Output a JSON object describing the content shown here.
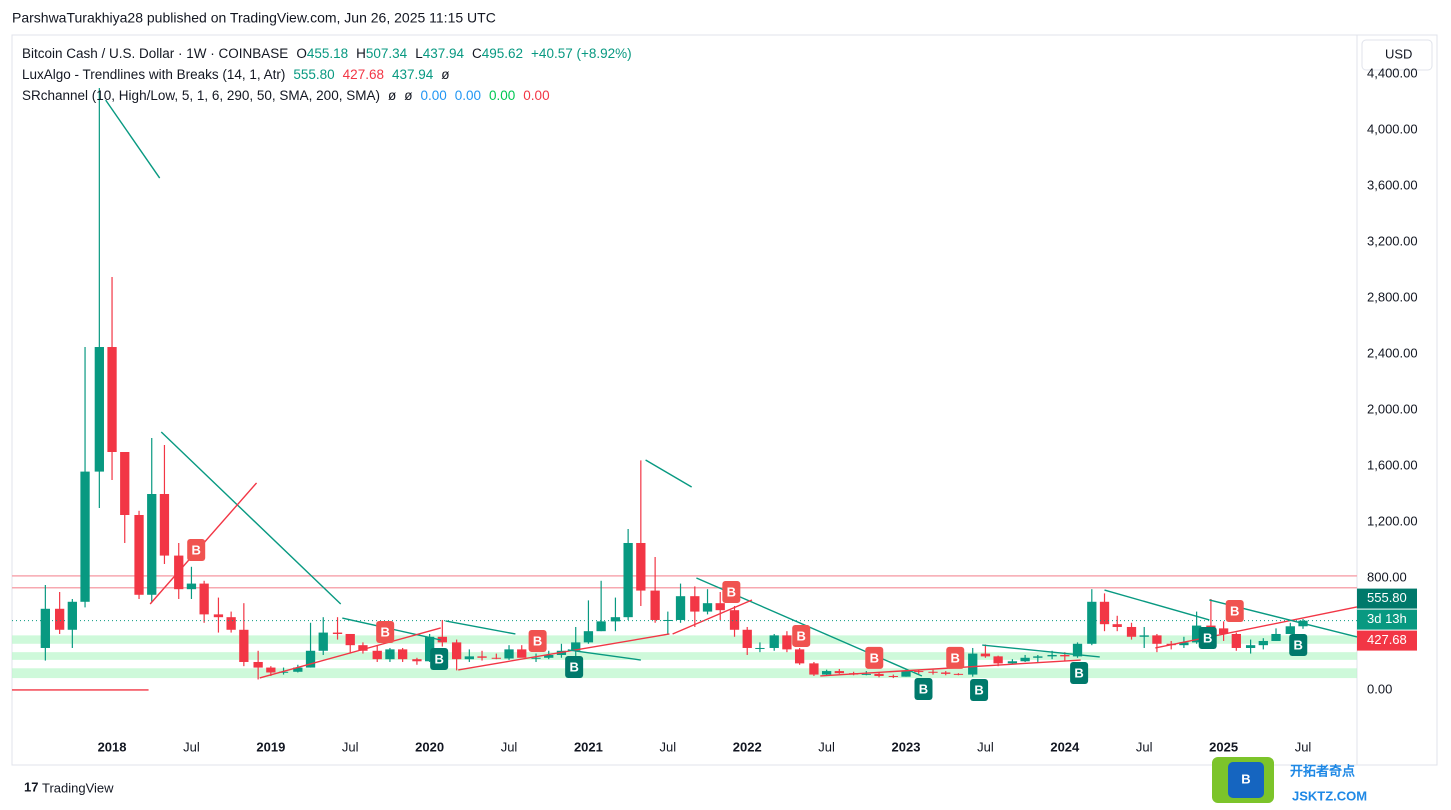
{
  "header": {
    "text": "ParshwaTurakhiya28 published on TradingView.com, Jun 26, 2025 11:15 UTC"
  },
  "legend": {
    "symbol": "Bitcoin Cash / U.S. Dollar · 1W · COINBASE",
    "ohlc": [
      "O",
      "455.18",
      "H",
      "507.34",
      "L",
      "437.94",
      "C",
      "495.62",
      "+40.57 (+8.92%)"
    ],
    "lux": [
      "LuxAlgo - Trendlines with Breaks (14, 1, Atr)",
      "555.80",
      "427.68",
      "437.94",
      "ø"
    ],
    "sr": [
      "SRchannel (10, High/Low, 5, 1, 6, 290, 50, SMA, 200, SMA)",
      "ø",
      "ø",
      "0.00",
      "0.00",
      "0.00",
      "0.00"
    ]
  },
  "currency": "USD",
  "price_boxes": [
    "555.80",
    "3d 13h",
    "427.68"
  ],
  "footer": {
    "brand": "TradingView",
    "watermark": "开拓者奇点",
    "watermark_sub": "JSKTZ.COM",
    "logo": "B"
  },
  "chart_data": {
    "type": "candlestick",
    "up_color": "#089981",
    "down_color": "#f23645",
    "xlim": [
      2017.37,
      2025.84
    ],
    "ylim": [
      -536,
      4679
    ],
    "grid": false,
    "xticks": [
      {
        "value": 2018,
        "label": "2018"
      },
      {
        "value": 2018.5,
        "label": "Jul"
      },
      {
        "value": 2019,
        "label": "2019"
      },
      {
        "value": 2019.5,
        "label": "Jul"
      },
      {
        "value": 2020,
        "label": "2020"
      },
      {
        "value": 2020.5,
        "label": "Jul"
      },
      {
        "value": 2021,
        "label": "2021"
      },
      {
        "value": 2021.5,
        "label": "Jul"
      },
      {
        "value": 2022,
        "label": "2022"
      },
      {
        "value": 2022.5,
        "label": "Jul"
      },
      {
        "value": 2023,
        "label": "2023"
      },
      {
        "value": 2023.5,
        "label": "Jul"
      },
      {
        "value": 2024,
        "label": "2024"
      },
      {
        "value": 2024.5,
        "label": "Jul"
      },
      {
        "value": 2025,
        "label": "2025"
      },
      {
        "value": 2025.5,
        "label": "Jul"
      }
    ],
    "yticks": [
      {
        "value": 0,
        "label": "0.00"
      },
      {
        "value": 800,
        "label": "800.00"
      },
      {
        "value": 1200,
        "label": "1,200.00"
      },
      {
        "value": 1600,
        "label": "1,600.00"
      },
      {
        "value": 2000,
        "label": "2,000.00"
      },
      {
        "value": 2400,
        "label": "2,400.00"
      },
      {
        "value": 2800,
        "label": "2,800.00"
      },
      {
        "value": 3200,
        "label": "3,200.00"
      },
      {
        "value": 3600,
        "label": "3,600.00"
      },
      {
        "value": 4000,
        "label": "4,000.00"
      },
      {
        "value": 4400,
        "label": "4,400.00"
      }
    ],
    "x": [
      2017.58,
      2017.67,
      2017.75,
      2017.83,
      2017.92,
      2018.0,
      2018.08,
      2018.17,
      2018.25,
      2018.33,
      2018.42,
      2018.5,
      2018.58,
      2018.67,
      2018.75,
      2018.83,
      2018.92,
      2019.0,
      2019.08,
      2019.17,
      2019.25,
      2019.33,
      2019.42,
      2019.5,
      2019.58,
      2019.67,
      2019.75,
      2019.83,
      2019.92,
      2020.0,
      2020.08,
      2020.17,
      2020.25,
      2020.33,
      2020.42,
      2020.5,
      2020.58,
      2020.67,
      2020.75,
      2020.83,
      2020.92,
      2021.0,
      2021.08,
      2021.17,
      2021.25,
      2021.33,
      2021.42,
      2021.5,
      2021.58,
      2021.67,
      2021.75,
      2021.83,
      2021.92,
      2022.0,
      2022.08,
      2022.17,
      2022.25,
      2022.33,
      2022.42,
      2022.5,
      2022.58,
      2022.67,
      2022.75,
      2022.83,
      2022.92,
      2023.0,
      2023.08,
      2023.17,
      2023.25,
      2023.33,
      2023.42,
      2023.5,
      2023.58,
      2023.67,
      2023.75,
      2023.83,
      2023.92,
      2024.0,
      2024.08,
      2024.17,
      2024.25,
      2024.33,
      2024.42,
      2024.5,
      2024.58,
      2024.67,
      2024.75,
      2024.83,
      2024.92,
      2025.0,
      2025.08,
      2025.17,
      2025.25,
      2025.33,
      2025.42,
      2025.5
    ],
    "open": [
      300,
      580,
      430,
      630,
      1560,
      2450,
      1700,
      1250,
      680,
      1400,
      960,
      720,
      760,
      540,
      520,
      430,
      200,
      160,
      125,
      130,
      160,
      280,
      410,
      400,
      320,
      280,
      220,
      290,
      220,
      205,
      380,
      340,
      220,
      240,
      230,
      225,
      290,
      230,
      230,
      250,
      280,
      340,
      420,
      490,
      520,
      1050,
      710,
      500,
      500,
      670,
      560,
      620,
      570,
      430,
      300,
      300,
      390,
      290,
      190,
      110,
      135,
      120,
      110,
      115,
      100,
      95,
      135,
      130,
      125,
      115,
      110,
      260,
      240,
      190,
      205,
      230,
      240,
      250,
      240,
      330,
      630,
      470,
      450,
      380,
      390,
      330,
      320,
      340,
      460,
      440,
      400,
      300,
      320,
      350,
      400,
      455
    ],
    "high": [
      750,
      700,
      650,
      2450,
      4300,
      2950,
      1700,
      1280,
      1800,
      1750,
      1050,
      880,
      780,
      660,
      560,
      620,
      280,
      170,
      160,
      180,
      480,
      520,
      520,
      400,
      340,
      320,
      300,
      300,
      230,
      400,
      500,
      360,
      290,
      280,
      260,
      320,
      320,
      260,
      280,
      330,
      450,
      640,
      780,
      660,
      1150,
      1640,
      950,
      560,
      760,
      740,
      720,
      700,
      600,
      450,
      340,
      400,
      420,
      300,
      200,
      145,
      150,
      130,
      135,
      125,
      110,
      150,
      145,
      145,
      135,
      120,
      300,
      325,
      245,
      220,
      250,
      250,
      280,
      270,
      340,
      720,
      690,
      530,
      480,
      450,
      400,
      350,
      380,
      560,
      650,
      490,
      410,
      360,
      370,
      440,
      480,
      507
    ],
    "low": [
      210,
      400,
      300,
      590,
      1300,
      1500,
      1050,
      650,
      630,
      900,
      650,
      650,
      480,
      410,
      410,
      170,
      75,
      100,
      110,
      125,
      160,
      250,
      360,
      260,
      260,
      200,
      200,
      200,
      180,
      200,
      310,
      140,
      200,
      210,
      220,
      215,
      250,
      200,
      220,
      230,
      230,
      330,
      420,
      420,
      500,
      600,
      480,
      400,
      480,
      450,
      540,
      500,
      380,
      250,
      270,
      280,
      270,
      180,
      100,
      100,
      115,
      105,
      105,
      90,
      85,
      95,
      115,
      110,
      105,
      105,
      95,
      230,
      170,
      185,
      200,
      200,
      220,
      210,
      230,
      320,
      420,
      420,
      360,
      300,
      270,
      290,
      300,
      330,
      400,
      350,
      280,
      260,
      290,
      350,
      400,
      437
    ],
    "close": [
      580,
      430,
      630,
      1560,
      2450,
      1700,
      1250,
      680,
      1400,
      960,
      720,
      760,
      540,
      520,
      430,
      200,
      160,
      125,
      130,
      160,
      280,
      410,
      400,
      320,
      280,
      220,
      290,
      220,
      205,
      380,
      340,
      220,
      240,
      230,
      225,
      290,
      230,
      230,
      250,
      280,
      340,
      420,
      490,
      520,
      1050,
      710,
      500,
      500,
      670,
      560,
      620,
      570,
      430,
      300,
      300,
      390,
      290,
      190,
      110,
      135,
      120,
      110,
      115,
      100,
      95,
      135,
      130,
      125,
      115,
      110,
      260,
      240,
      190,
      205,
      230,
      240,
      250,
      240,
      330,
      630,
      470,
      450,
      380,
      390,
      330,
      320,
      340,
      460,
      440,
      400,
      300,
      320,
      350,
      400,
      455,
      495
    ],
    "current_price": 495.62,
    "support_zones": [
      [
        330,
        390
      ],
      [
        215,
        270
      ],
      [
        85,
        155
      ]
    ],
    "resistance_lines": [
      815,
      730
    ],
    "trendlines": [
      {
        "color": "#089981",
        "points": [
          2017.96,
          4214,
          2018.3,
          3657
        ]
      },
      {
        "color": "#089981",
        "points": [
          2018.31,
          1843,
          2019.44,
          614
        ]
      },
      {
        "color": "#f23645",
        "points": [
          2018.24,
          614,
          2018.91,
          1479
        ]
      },
      {
        "color": "#089981",
        "points": [
          2019.45,
          514,
          2020.07,
          357
        ]
      },
      {
        "color": "#f23645",
        "points": [
          2018.93,
          86,
          2020.07,
          443
        ]
      },
      {
        "color": "#089981",
        "points": [
          2020.1,
          493,
          2020.54,
          400
        ]
      },
      {
        "color": "#f23645",
        "points": [
          2020.18,
          143,
          2021.51,
          400
        ]
      },
      {
        "color": "#089981",
        "points": [
          2020.87,
          286,
          2021.33,
          214
        ]
      },
      {
        "color": "#089981",
        "points": [
          2021.36,
          1643,
          2021.65,
          1450
        ]
      },
      {
        "color": "#089981",
        "points": [
          2021.68,
          800,
          2023.1,
          100
        ]
      },
      {
        "color": "#f23645",
        "points": [
          2021.53,
          400,
          2022.03,
          643
        ]
      },
      {
        "color": "#f23645",
        "points": [
          2022.46,
          100,
          2024.1,
          214
        ]
      },
      {
        "color": "#089981",
        "points": [
          2023.48,
          321,
          2024.22,
          236
        ]
      },
      {
        "color": "#089981",
        "points": [
          2024.25,
          714,
          2024.91,
          500
        ]
      },
      {
        "color": "#f23645",
        "points": [
          2024.57,
          300,
          2025.84,
          593
        ]
      },
      {
        "color": "#089981",
        "points": [
          2024.91,
          643,
          2025.84,
          379
        ]
      },
      {
        "color": "#f23645",
        "points": [
          2017.37,
          0,
          2018.23,
          0
        ]
      }
    ],
    "breaks": [
      {
        "text": "B",
        "kind": "down",
        "x": 2018.53,
        "y": 1000
      },
      {
        "text": "B",
        "kind": "down",
        "x": 2019.72,
        "y": 414
      },
      {
        "text": "B",
        "kind": "down",
        "x": 2020.68,
        "y": 350
      },
      {
        "text": "B",
        "kind": "down",
        "x": 2021.9,
        "y": 700
      },
      {
        "text": "B",
        "kind": "down",
        "x": 2022.34,
        "y": 386
      },
      {
        "text": "B",
        "kind": "down",
        "x": 2022.8,
        "y": 229
      },
      {
        "text": "B",
        "kind": "down",
        "x": 2023.31,
        "y": 229
      },
      {
        "text": "B",
        "kind": "down",
        "x": 2025.07,
        "y": 564
      },
      {
        "text": "B",
        "kind": "up",
        "x": 2020.06,
        "y": 221
      },
      {
        "text": "B",
        "kind": "up",
        "x": 2020.91,
        "y": 164
      },
      {
        "text": "B",
        "kind": "up",
        "x": 2023.11,
        "y": 7
      },
      {
        "text": "B",
        "kind": "up",
        "x": 2023.46,
        "y": 0
      },
      {
        "text": "B",
        "kind": "up",
        "x": 2024.09,
        "y": 121
      },
      {
        "text": "B",
        "kind": "up",
        "x": 2024.9,
        "y": 371
      },
      {
        "text": "B",
        "kind": "up",
        "x": 2025.47,
        "y": 321
      }
    ]
  }
}
